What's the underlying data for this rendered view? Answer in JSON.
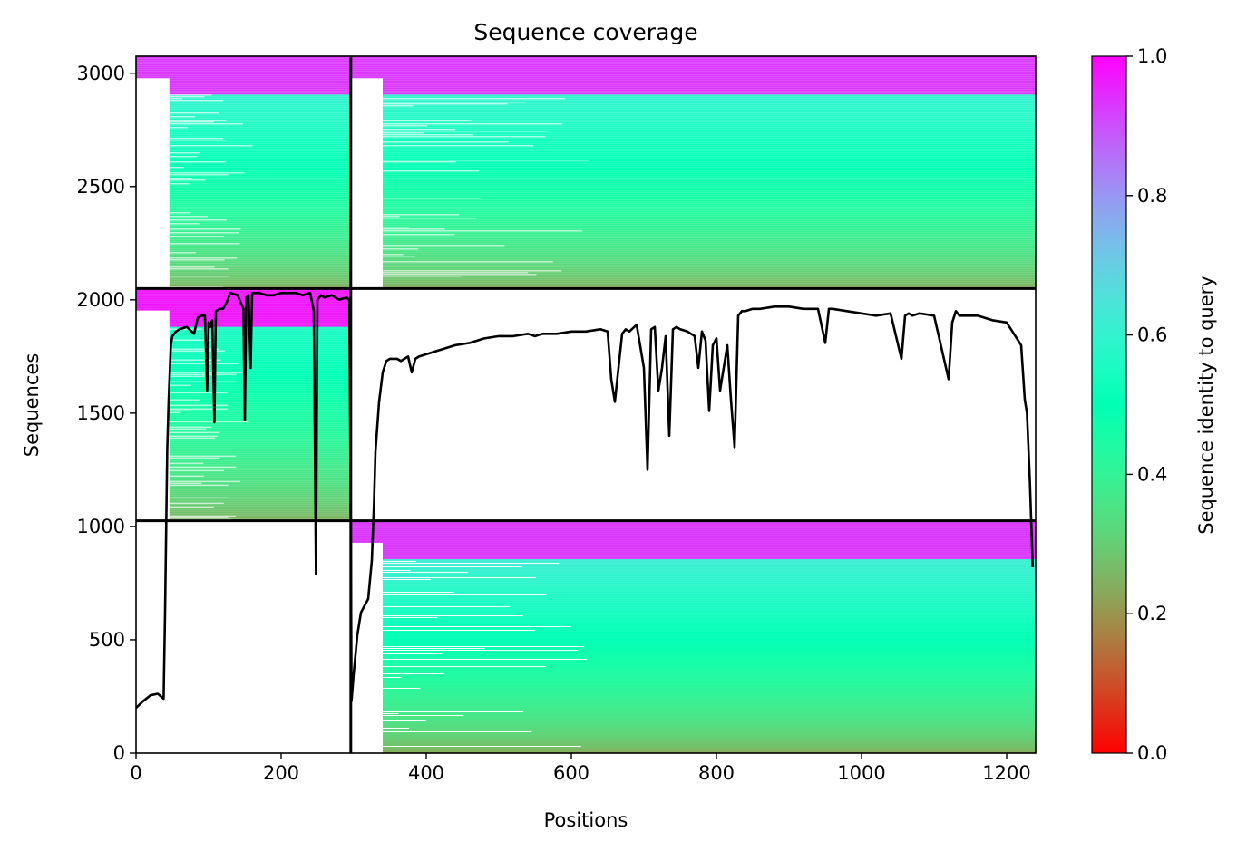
{
  "chart_data": {
    "type": "heatmap",
    "title": "Sequence coverage",
    "xlabel": "Positions",
    "ylabel": "Sequences",
    "xlim": [
      0,
      1240
    ],
    "ylim": [
      0,
      3075
    ],
    "xticks": [
      0,
      200,
      400,
      600,
      800,
      1000,
      1200
    ],
    "yticks": [
      0,
      500,
      1000,
      1500,
      2000,
      2500,
      3000
    ],
    "colorbar": {
      "label": "Sequence identity to query",
      "colormap": "rainbow_r",
      "range": [
        0.0,
        1.0
      ],
      "ticks": [
        "0.0",
        "0.2",
        "0.4",
        "0.6",
        "0.8",
        "1.0"
      ]
    },
    "chain_boundaries": {
      "x": [
        296
      ],
      "y": [
        1025,
        2050
      ]
    },
    "blocks": [
      {
        "name": "chain-1-msa",
        "x_range": [
          0,
          296
        ],
        "y_range": [
          1025,
          2050
        ],
        "covered_from_x": 46,
        "identity_bottom": 0.24,
        "identity_top": 0.56,
        "top_band_identity": 0.97
      },
      {
        "name": "chain-2-msa",
        "x_range": [
          296,
          1240
        ],
        "y_range": [
          2050,
          3075
        ],
        "covered_from_x": 340,
        "identity_bottom": 0.24,
        "identity_top": 0.6,
        "top_band_identity": 0.93
      },
      {
        "name": "chain-3-msa",
        "x_range": [
          296,
          1240
        ],
        "y_range": [
          0,
          1025
        ],
        "covered_from_x": 340,
        "identity_bottom": 0.24,
        "identity_top": 0.62,
        "top_band_identity": 0.93
      },
      {
        "name": "chain-1-in-chain-2-rows",
        "x_range": [
          0,
          296
        ],
        "y_range": [
          2050,
          3075
        ],
        "covered_from_x": 46,
        "identity_bottom": 0.24,
        "identity_top": 0.6,
        "top_band_identity": 0.93
      }
    ],
    "coverage_line": {
      "name": "coverage",
      "color": "#000000",
      "x": [
        0,
        10,
        20,
        30,
        38,
        40,
        43,
        45,
        48,
        50,
        55,
        60,
        70,
        80,
        85,
        90,
        95,
        98,
        100,
        102,
        105,
        108,
        110,
        115,
        120,
        125,
        130,
        140,
        148,
        150,
        152,
        155,
        158,
        160,
        165,
        170,
        180,
        190,
        200,
        210,
        220,
        230,
        240,
        245,
        248,
        250,
        255,
        260,
        270,
        280,
        290,
        294,
        296,
        297,
        300,
        305,
        310,
        315,
        320,
        325,
        328,
        330,
        335,
        340,
        345,
        350,
        355,
        360,
        365,
        370,
        375,
        380,
        385,
        390,
        400,
        420,
        440,
        460,
        480,
        500,
        520,
        540,
        550,
        560,
        580,
        600,
        620,
        640,
        650,
        655,
        660,
        665,
        670,
        675,
        680,
        690,
        700,
        705,
        710,
        715,
        720,
        725,
        730,
        735,
        740,
        745,
        750,
        760,
        770,
        775,
        780,
        785,
        790,
        795,
        800,
        805,
        810,
        815,
        820,
        825,
        830,
        835,
        840,
        850,
        860,
        880,
        900,
        920,
        940,
        950,
        955,
        960,
        980,
        1000,
        1020,
        1040,
        1055,
        1060,
        1065,
        1070,
        1080,
        1100,
        1120,
        1125,
        1130,
        1135,
        1140,
        1160,
        1180,
        1200,
        1220,
        1225,
        1228,
        1232,
        1236,
        1240
      ],
      "y": [
        200,
        230,
        255,
        262,
        240,
        620,
        1340,
        1560,
        1800,
        1840,
        1860,
        1870,
        1880,
        1850,
        1920,
        1930,
        1930,
        1600,
        1900,
        1880,
        1910,
        1460,
        1950,
        1960,
        1960,
        1990,
        2030,
        2020,
        1960,
        1470,
        2010,
        2020,
        1700,
        2030,
        2030,
        2030,
        2020,
        2020,
        2030,
        2030,
        2030,
        2020,
        2030,
        1950,
        790,
        2000,
        2020,
        2010,
        2020,
        2000,
        2010,
        2000,
        1020,
        230,
        350,
        520,
        620,
        650,
        680,
        850,
        1100,
        1330,
        1550,
        1680,
        1730,
        1740,
        1740,
        1740,
        1730,
        1740,
        1750,
        1680,
        1740,
        1750,
        1760,
        1780,
        1800,
        1810,
        1830,
        1840,
        1840,
        1850,
        1840,
        1850,
        1850,
        1860,
        1860,
        1870,
        1860,
        1650,
        1550,
        1700,
        1850,
        1870,
        1860,
        1890,
        1700,
        1250,
        1870,
        1880,
        1600,
        1700,
        1840,
        1400,
        1870,
        1880,
        1870,
        1860,
        1840,
        1700,
        1860,
        1820,
        1510,
        1800,
        1830,
        1600,
        1700,
        1800,
        1560,
        1350,
        1930,
        1950,
        1950,
        1960,
        1960,
        1970,
        1970,
        1960,
        1960,
        1810,
        1960,
        1960,
        1950,
        1940,
        1930,
        1940,
        1740,
        1930,
        1940,
        1930,
        1940,
        1930,
        1650,
        1900,
        1950,
        1930,
        1930,
        1930,
        1910,
        1900,
        1800,
        1560,
        1500,
        1200,
        820
      ]
    }
  }
}
